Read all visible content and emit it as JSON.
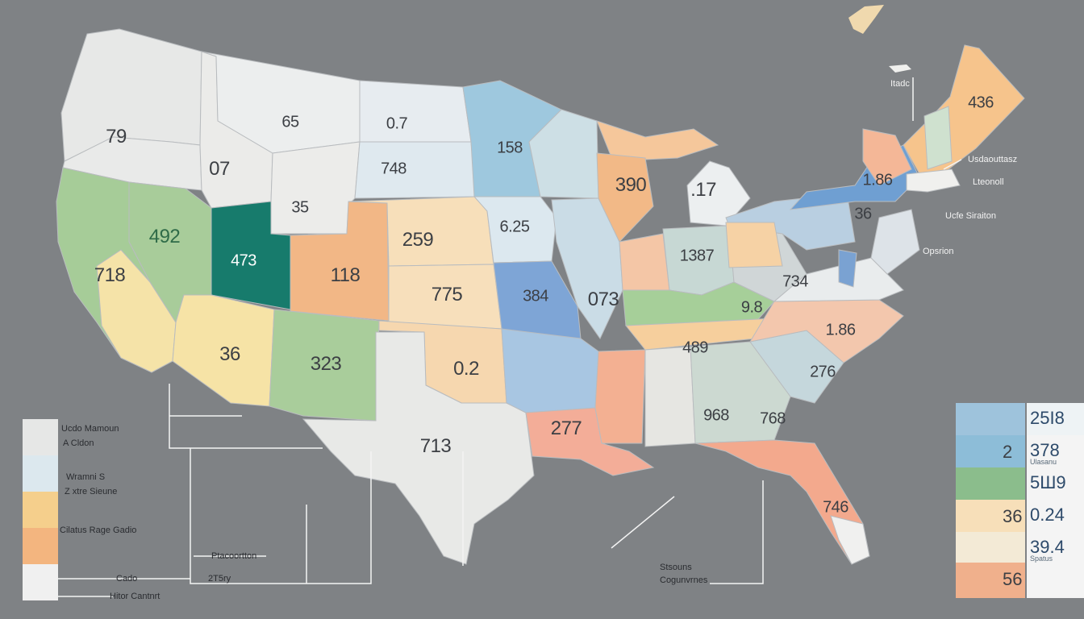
{
  "map": {
    "region_labels": [
      "79",
      "65",
      "0.7",
      "07",
      "748",
      "35",
      "6.25",
      "492",
      "473",
      "118",
      "259",
      "718",
      "36",
      "323",
      "775",
      "384",
      "0.2",
      "073",
      "713",
      "277",
      "158",
      "390",
      ".17",
      "1387",
      "734",
      "9.8",
      "1.86",
      "489",
      "276",
      "1.86",
      "968",
      "768",
      "746",
      "436",
      "36"
    ]
  },
  "annotations": {
    "northeast": [
      "Itadc",
      "Usdaouttasz",
      "Lteonoll",
      "Ucfe Siraiton",
      "Opsrion"
    ],
    "bottom": [
      "Ptacoortton",
      "2T5ry",
      "Stsouns",
      "Cogunvrnes"
    ]
  },
  "legend_left": {
    "colors": [
      "#e6e7e6",
      "#dce8ee",
      "#f5cf8c",
      "#f3b57f",
      "#f0f0f0"
    ],
    "labels": [
      "Ucdo Mamoun",
      "A Cldon",
      "Wramni S",
      "Z xtre Sieune",
      "Cilatus Rage Gadio",
      "Cado",
      "Hitor Cantnrt"
    ]
  },
  "legend_right": {
    "colors": [
      "#9ec3dc",
      "#8dbdd8",
      "#8bbd8c",
      "#f7dfb9",
      "#f3ead6",
      "#f0b08c"
    ],
    "left_values": [
      "2",
      "36",
      "56"
    ],
    "values": [
      "25I8",
      "378",
      "5Ш9",
      "0.24",
      "39.4"
    ],
    "sublabels": [
      "Ulasanu",
      "Spatus"
    ]
  }
}
